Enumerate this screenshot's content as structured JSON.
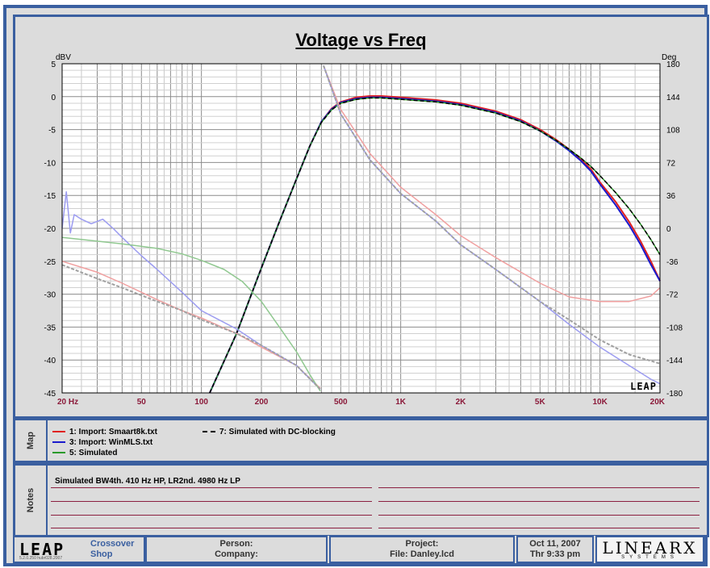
{
  "chart_data": {
    "type": "line",
    "title": "Voltage vs Freq",
    "left_axis_label": "dBV",
    "right_axis_label": "Deg",
    "xscale": "log",
    "xlim": [
      20,
      20000
    ],
    "ylim": [
      -45,
      5
    ],
    "y2lim": [
      -180,
      180
    ],
    "grid": true,
    "x_ticks": [
      {
        "value": 20,
        "label": "20  Hz"
      },
      {
        "value": 50,
        "label": "50"
      },
      {
        "value": 100,
        "label": "100"
      },
      {
        "value": 200,
        "label": "200"
      },
      {
        "value": 500,
        "label": "500"
      },
      {
        "value": 1000,
        "label": "1K"
      },
      {
        "value": 2000,
        "label": "2K"
      },
      {
        "value": 5000,
        "label": "5K"
      },
      {
        "value": 10000,
        "label": "10K"
      },
      {
        "value": 20000,
        "label": "20K"
      }
    ],
    "y_ticks": [
      "5",
      "0",
      "-5",
      "-10",
      "-15",
      "-20",
      "-25",
      "-30",
      "-35",
      "-40",
      "-45"
    ],
    "y2_ticks": [
      "180",
      "144",
      "108",
      "72",
      "36",
      "0",
      "-36",
      "-72",
      "-108",
      "-144",
      "-180"
    ],
    "series": [
      {
        "name": "1: Import: Smaart8k.txt",
        "color": "#e02020",
        "width": 2,
        "dash": "",
        "axis": "left",
        "x": [
          110,
          150,
          200,
          250,
          300,
          350,
          400,
          450,
          500,
          600,
          700,
          800,
          1000,
          1500,
          2000,
          3000,
          4000,
          5000,
          6000,
          7000,
          8000,
          9000,
          10000,
          12000,
          14000,
          16000,
          18000,
          20000
        ],
        "y": [
          -45,
          -36,
          -26,
          -18.5,
          -12.5,
          -7.5,
          -3.8,
          -1.8,
          -0.8,
          -0.1,
          0.1,
          0.1,
          -0.1,
          -0.5,
          -1,
          -2.2,
          -3.5,
          -5,
          -6.5,
          -8,
          -9.5,
          -11,
          -13,
          -16,
          -19,
          -22,
          -25,
          -28
        ]
      },
      {
        "name": "3: Import: WinMLS.txt",
        "color": "#1a1acc",
        "width": 2,
        "dash": "",
        "axis": "left",
        "x": [
          110,
          150,
          200,
          250,
          300,
          350,
          400,
          450,
          500,
          600,
          700,
          800,
          1000,
          1500,
          2000,
          3000,
          4000,
          5000,
          6000,
          7000,
          8000,
          9000,
          10000,
          12000,
          14000,
          16000,
          18000,
          20000
        ],
        "y": [
          -45,
          -36,
          -26,
          -18.5,
          -12.5,
          -7.5,
          -3.8,
          -1.9,
          -0.9,
          -0.3,
          -0.1,
          -0.1,
          -0.3,
          -0.7,
          -1.2,
          -2.4,
          -3.7,
          -5.2,
          -6.7,
          -8.2,
          -9.7,
          -11.3,
          -13.3,
          -16.5,
          -19.5,
          -22.5,
          -25.5,
          -28
        ]
      },
      {
        "name": "5: Simulated",
        "color": "#2a9a2a",
        "width": 1.5,
        "dash": "",
        "axis": "left",
        "x": [
          110,
          150,
          200,
          250,
          300,
          350,
          400,
          450,
          500,
          600,
          700,
          800,
          1000,
          1500,
          2000,
          3000,
          4000,
          5000,
          6000,
          7000,
          8000,
          9000,
          10000,
          12000,
          14000,
          16000,
          18000,
          20000
        ],
        "y": [
          -45,
          -36,
          -26,
          -18.5,
          -12.5,
          -7.5,
          -3.9,
          -2,
          -1,
          -0.4,
          -0.2,
          -0.2,
          -0.4,
          -0.8,
          -1.3,
          -2.5,
          -3.8,
          -5.2,
          -6.6,
          -8,
          -9.3,
          -10.6,
          -12,
          -14.6,
          -17,
          -19.4,
          -21.7,
          -24
        ]
      },
      {
        "name": "7: Simulated with DC-blocking",
        "color": "#000000",
        "width": 1.5,
        "dash": "5,3",
        "axis": "left",
        "x": [
          110,
          150,
          200,
          250,
          300,
          350,
          400,
          450,
          500,
          600,
          700,
          800,
          1000,
          1500,
          2000,
          3000,
          4000,
          5000,
          6000,
          7000,
          8000,
          9000,
          10000,
          12000,
          14000,
          16000,
          18000,
          20000
        ],
        "y": [
          -45,
          -36,
          -26,
          -18.5,
          -12.5,
          -7.5,
          -3.9,
          -2,
          -1,
          -0.4,
          -0.2,
          -0.2,
          -0.4,
          -0.8,
          -1.3,
          -2.5,
          -3.8,
          -5.2,
          -6.6,
          -8,
          -9.3,
          -10.6,
          -12,
          -14.6,
          -17,
          -19.4,
          -21.7,
          -24
        ]
      },
      {
        "name": "1: Import: Smaart8k.txt (phase)",
        "color": "#f0a0a0",
        "width": 1.5,
        "dash": "",
        "axis": "right",
        "x": [
          20,
          30,
          40,
          60,
          80,
          100,
          150,
          200,
          300,
          395,
          410,
          500,
          700,
          1000,
          1500,
          2000,
          3000,
          5000,
          7000,
          10000,
          14000,
          18000,
          20000
        ],
        "y": [
          -36,
          -48,
          -60,
          -78,
          -90,
          -98,
          -115,
          -130,
          -150,
          -175,
          178,
          130,
          82,
          45,
          15,
          -8,
          -32,
          -60,
          -75,
          -80,
          -80,
          -74,
          -65
        ]
      },
      {
        "name": "3: Import: WinMLS.txt (phase)",
        "color": "#9c9cf0",
        "width": 1.5,
        "dash": "",
        "axis": "right",
        "x": [
          20,
          21,
          22,
          23,
          25,
          28,
          32,
          36,
          40,
          50,
          60,
          80,
          100,
          150,
          200,
          300,
          395,
          410,
          500,
          700,
          1000,
          1500,
          2000,
          3000,
          5000,
          7000,
          10000,
          14000,
          18000,
          20000
        ],
        "y": [
          0,
          40,
          -5,
          15,
          10,
          5,
          10,
          0,
          -10,
          -30,
          -45,
          -70,
          -90,
          -110,
          -128,
          -150,
          -176,
          178,
          125,
          75,
          38,
          8,
          -18,
          -45,
          -80,
          -105,
          -130,
          -150,
          -165,
          -170
        ]
      },
      {
        "name": "5: Simulated (phase)",
        "color": "#90c890",
        "width": 1.5,
        "dash": "",
        "axis": "right",
        "x": [
          20,
          30,
          40,
          60,
          80,
          100,
          130,
          160,
          200,
          250,
          300,
          350,
          395
        ],
        "y": [
          -10,
          -14,
          -17,
          -22,
          -28,
          -35,
          -45,
          -58,
          -80,
          -110,
          -135,
          -160,
          -178
        ]
      },
      {
        "name": "7: Simulated with DC-blocking (phase)",
        "color": "#a0a0a0",
        "width": 2,
        "dash": "4,2",
        "axis": "right",
        "x": [
          20,
          30,
          40,
          60,
          80,
          100,
          150,
          200,
          300,
          395,
          410,
          500,
          700,
          1000,
          1500,
          2000,
          3000,
          5000,
          7000,
          10000,
          14000,
          18000,
          20000
        ],
        "y": [
          -40,
          -55,
          -65,
          -80,
          -90,
          -100,
          -115,
          -128,
          -150,
          -176,
          178,
          125,
          75,
          38,
          8,
          -18,
          -45,
          -80,
          -100,
          -122,
          -138,
          -145,
          -148
        ]
      }
    ]
  },
  "brand": {
    "logo_text": "LEAP",
    "chart_logo_text": "LEAP",
    "version_text": "5.2.0.250  hubr028.2007"
  },
  "legend": {
    "items": [
      {
        "label": "1: Import: Smaart8k.txt",
        "color": "#e02020",
        "dashed": false
      },
      {
        "label": "3: Import: WinMLS.txt",
        "color": "#1a1acc",
        "dashed": false
      },
      {
        "label": "5: Simulated",
        "color": "#2a9a2a",
        "dashed": false
      },
      {
        "label": "7: Simulated with DC-blocking",
        "color": "#000000",
        "dashed": true
      }
    ]
  },
  "map": {
    "label": "Map"
  },
  "notes": {
    "label": "Notes",
    "text": "Simulated BW4th. 410 Hz HP, LR2nd. 4980 Hz LP"
  },
  "footer": {
    "app_line1": "Crossover",
    "app_line2": "Shop",
    "person_label": "Person:",
    "company_label": "Company:",
    "project_label": "Project:",
    "file_label": "File: Danley.lcd",
    "date": "Oct 11, 2007",
    "time": "Thr  9:33 pm",
    "linearx_text": "LINEARX",
    "linearx_sub": "SYSTEMS"
  }
}
